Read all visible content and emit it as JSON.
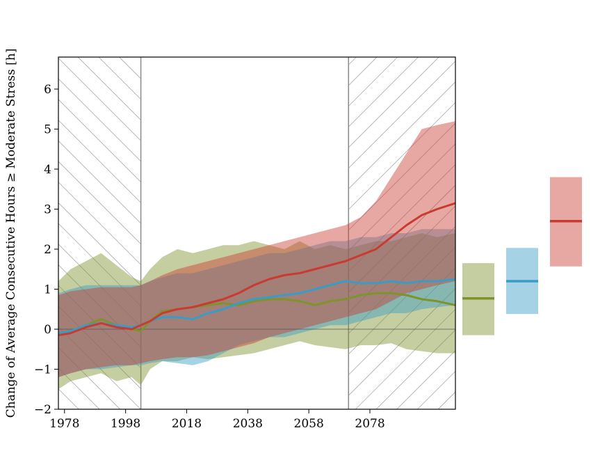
{
  "chart_data": {
    "type": "line",
    "title": "",
    "xlabel": "",
    "ylabel": "Change of Average Consecutive Hours ≥ Moderate Stress [h]",
    "xlim": [
      1976,
      2106
    ],
    "ylim": [
      -2,
      6.8
    ],
    "xticks": [
      "1978",
      "1998",
      "2018",
      "2038",
      "2058",
      "2078"
    ],
    "yticks": [
      "−2",
      "−1",
      "0",
      "1",
      "2",
      "3",
      "4",
      "5",
      "6"
    ],
    "hatched_periods": [
      [
        1976,
        2003
      ],
      [
        2071,
        2106
      ]
    ],
    "zero_line": true,
    "colors": {
      "green": "#7f932c",
      "blue": "#3a9bc6",
      "red": "#c93b30"
    },
    "series": [
      {
        "color_key": "green",
        "x": [
          1976,
          1980,
          1985,
          1990,
          1995,
          2000,
          2003,
          2006,
          2010,
          2015,
          2020,
          2025,
          2030,
          2035,
          2040,
          2045,
          2050,
          2055,
          2060,
          2065,
          2070,
          2075,
          2080,
          2085,
          2090,
          2095,
          2100,
          2106
        ],
        "mean": [
          -0.1,
          -0.05,
          0.1,
          0.25,
          0.1,
          0.0,
          -0.05,
          0.2,
          0.45,
          0.5,
          0.55,
          0.6,
          0.65,
          0.6,
          0.7,
          0.75,
          0.75,
          0.7,
          0.6,
          0.7,
          0.75,
          0.85,
          0.9,
          0.9,
          0.85,
          0.75,
          0.7,
          0.6
        ],
        "lower": [
          -1.5,
          -1.3,
          -1.2,
          -1.1,
          -1.3,
          -1.2,
          -1.4,
          -1.0,
          -0.8,
          -0.8,
          -0.7,
          -0.75,
          -0.7,
          -0.65,
          -0.6,
          -0.5,
          -0.4,
          -0.3,
          -0.4,
          -0.45,
          -0.5,
          -0.4,
          -0.4,
          -0.35,
          -0.5,
          -0.55,
          -0.6,
          -0.6
        ],
        "upper": [
          1.2,
          1.5,
          1.7,
          1.9,
          1.6,
          1.3,
          1.2,
          1.5,
          1.8,
          2.0,
          1.9,
          2.0,
          2.1,
          2.1,
          2.2,
          2.1,
          2.0,
          2.2,
          2.0,
          2.1,
          2.0,
          2.1,
          2.2,
          2.2,
          2.3,
          2.4,
          2.3,
          2.4
        ]
      },
      {
        "color_key": "blue",
        "x": [
          1976,
          1980,
          1985,
          1990,
          1995,
          2000,
          2003,
          2006,
          2010,
          2015,
          2020,
          2025,
          2030,
          2035,
          2040,
          2045,
          2050,
          2055,
          2060,
          2065,
          2070,
          2075,
          2080,
          2085,
          2090,
          2095,
          2100,
          2106
        ],
        "mean": [
          -0.1,
          -0.05,
          0.1,
          0.15,
          0.1,
          0.05,
          0.1,
          0.2,
          0.3,
          0.3,
          0.25,
          0.4,
          0.5,
          0.65,
          0.75,
          0.8,
          0.85,
          0.9,
          1.0,
          1.1,
          1.2,
          1.15,
          1.15,
          1.2,
          1.15,
          1.2,
          1.2,
          1.25
        ],
        "lower": [
          -1.2,
          -1.1,
          -1.0,
          -1.0,
          -0.95,
          -0.9,
          -0.9,
          -0.85,
          -0.8,
          -0.85,
          -0.9,
          -0.8,
          -0.6,
          -0.4,
          -0.3,
          -0.2,
          -0.2,
          -0.1,
          0.0,
          0.1,
          0.1,
          0.2,
          0.3,
          0.4,
          0.4,
          0.5,
          0.55,
          0.6
        ],
        "upper": [
          0.9,
          1.0,
          1.1,
          1.1,
          1.1,
          1.1,
          1.1,
          1.2,
          1.3,
          1.4,
          1.4,
          1.5,
          1.6,
          1.7,
          1.8,
          1.9,
          1.9,
          2.0,
          2.1,
          2.2,
          2.2,
          2.3,
          2.3,
          2.4,
          2.4,
          2.5,
          2.5,
          2.5
        ]
      },
      {
        "color_key": "red",
        "x": [
          1976,
          1980,
          1985,
          1990,
          1995,
          2000,
          2003,
          2006,
          2010,
          2015,
          2020,
          2025,
          2030,
          2035,
          2040,
          2045,
          2050,
          2055,
          2060,
          2065,
          2070,
          2075,
          2080,
          2085,
          2090,
          2095,
          2100,
          2106
        ],
        "mean": [
          -0.15,
          -0.1,
          0.05,
          0.15,
          0.05,
          0.0,
          0.1,
          0.2,
          0.4,
          0.5,
          0.55,
          0.65,
          0.75,
          0.9,
          1.1,
          1.25,
          1.35,
          1.4,
          1.5,
          1.6,
          1.7,
          1.85,
          2.0,
          2.3,
          2.6,
          2.85,
          3.0,
          3.15
        ],
        "lower": [
          -1.2,
          -1.1,
          -1.0,
          -0.95,
          -0.9,
          -0.9,
          -0.85,
          -0.8,
          -0.75,
          -0.7,
          -0.7,
          -0.65,
          -0.55,
          -0.45,
          -0.35,
          -0.2,
          -0.1,
          0.0,
          0.1,
          0.2,
          0.3,
          0.4,
          0.5,
          0.7,
          0.9,
          1.0,
          1.1,
          1.2
        ],
        "upper": [
          0.85,
          0.95,
          1.0,
          1.05,
          1.05,
          1.05,
          1.1,
          1.2,
          1.35,
          1.5,
          1.6,
          1.7,
          1.8,
          1.9,
          2.0,
          2.1,
          2.2,
          2.3,
          2.4,
          2.5,
          2.6,
          2.8,
          3.2,
          3.8,
          4.4,
          5.0,
          5.1,
          5.2
        ]
      }
    ],
    "summary_boxes": [
      {
        "color_key": "green",
        "lower": -0.15,
        "upper": 1.65,
        "mean": 0.77
      },
      {
        "color_key": "blue",
        "lower": 0.38,
        "upper": 2.03,
        "mean": 1.2
      },
      {
        "color_key": "red",
        "lower": 1.57,
        "upper": 3.8,
        "mean": 2.7
      }
    ]
  }
}
